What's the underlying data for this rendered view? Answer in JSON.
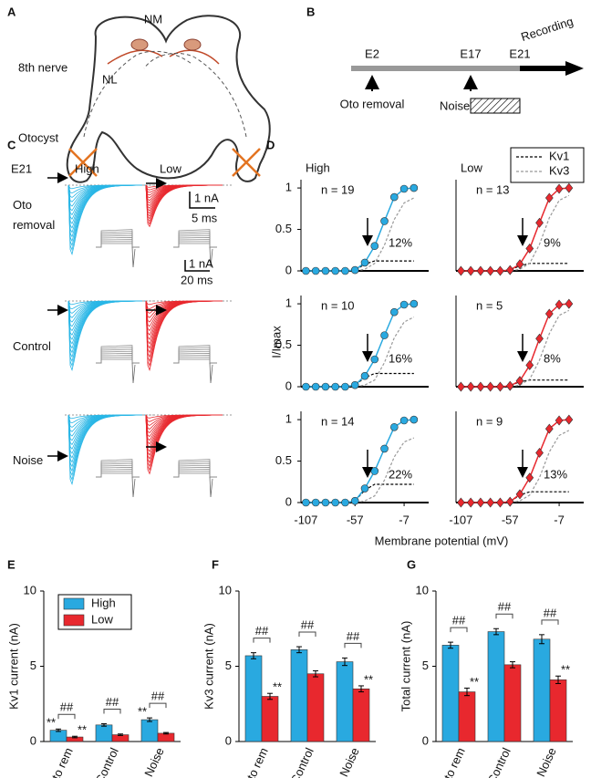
{
  "panel_labels": [
    "A",
    "B",
    "C",
    "D",
    "E",
    "F",
    "G"
  ],
  "diagram_a": {
    "labels": [
      "NM",
      "NL",
      "8th nerve",
      "Otocyst"
    ]
  },
  "timeline_b": {
    "stages": [
      "E2",
      "E17",
      "E21"
    ],
    "recording": "Recording",
    "events": [
      "Oto removal",
      "Noise"
    ]
  },
  "traces_c": {
    "age": "E21",
    "columns": [
      "High",
      "Low"
    ],
    "rows": [
      "Oto removal",
      "Control",
      "Noise"
    ],
    "scale_bars": [
      "1 nA",
      "5 ms",
      "1 nA",
      "20 ms"
    ]
  },
  "panel_d": {
    "columns": [
      "High",
      "Low"
    ],
    "ylabel": "I/Imax",
    "xlabel": "Membrane potential (mV)",
    "legend": [
      {
        "name": "Kv1",
        "color": "#000000"
      },
      {
        "name": "Kv3",
        "color": "#999999"
      }
    ]
  },
  "chart_data": [
    {
      "type": "line",
      "annotation": "n = 19",
      "percent": "12%",
      "x": [
        -107,
        -97,
        -87,
        -77,
        -67,
        -57,
        -47,
        -37,
        -27,
        -17,
        -7,
        3
      ],
      "xlim": [
        -112,
        18
      ],
      "ylim": [
        0,
        1.1
      ],
      "yticks": [
        0,
        0.5,
        1
      ],
      "series": [
        {
          "color": "#000000",
          "dash": "3 2",
          "values": [
            0,
            0,
            0,
            0,
            0,
            0.01,
            0.08,
            0.12,
            0.12,
            0.12,
            0.12,
            0.12
          ]
        },
        {
          "color": "#999999",
          "dash": "3 2",
          "values": [
            0,
            0,
            0,
            0,
            0,
            0,
            0.02,
            0.09,
            0.31,
            0.62,
            0.82,
            0.88
          ]
        },
        {
          "color": "#29a9e0",
          "marker": "circle",
          "values": [
            0,
            0,
            0,
            0,
            0,
            0.01,
            0.1,
            0.3,
            0.6,
            0.89,
            0.99,
            1
          ]
        }
      ]
    },
    {
      "type": "line",
      "annotation": "n = 13",
      "percent": "9%",
      "x": [
        -107,
        -97,
        -87,
        -77,
        -67,
        -57,
        -47,
        -37,
        -27,
        -17,
        -7,
        3
      ],
      "xlim": [
        -112,
        18
      ],
      "ylim": [
        0,
        1.1
      ],
      "series": [
        {
          "color": "#000000",
          "dash": "3 2",
          "values": [
            0,
            0,
            0,
            0,
            0,
            0.01,
            0.06,
            0.09,
            0.09,
            0.09,
            0.09,
            0.09
          ]
        },
        {
          "color": "#999999",
          "dash": "3 2",
          "values": [
            0,
            0,
            0,
            0,
            0,
            0,
            0.02,
            0.09,
            0.32,
            0.64,
            0.85,
            0.91
          ]
        },
        {
          "color": "#e8282e",
          "marker": "diamond",
          "values": [
            0,
            0,
            0,
            0,
            0,
            0.01,
            0.08,
            0.27,
            0.58,
            0.88,
            0.99,
            1
          ]
        }
      ]
    },
    {
      "type": "line",
      "annotation": "n = 10",
      "percent": "16%",
      "x": [
        -107,
        -97,
        -87,
        -77,
        -67,
        -57,
        -47,
        -37,
        -27,
        -17,
        -7,
        3
      ],
      "xlim": [
        -112,
        18
      ],
      "ylim": [
        0,
        1.1
      ],
      "yticks": [
        0,
        0.5,
        1
      ],
      "series": [
        {
          "color": "#000000",
          "dash": "3 2",
          "values": [
            0,
            0,
            0,
            0,
            0,
            0.02,
            0.11,
            0.16,
            0.16,
            0.16,
            0.16,
            0.16
          ]
        },
        {
          "color": "#999999",
          "dash": "3 2",
          "values": [
            0,
            0,
            0,
            0,
            0,
            0,
            0.02,
            0.08,
            0.29,
            0.59,
            0.78,
            0.84
          ]
        },
        {
          "color": "#29a9e0",
          "marker": "circle",
          "values": [
            0,
            0,
            0,
            0,
            0,
            0.02,
            0.13,
            0.33,
            0.62,
            0.9,
            0.99,
            1
          ]
        }
      ]
    },
    {
      "type": "line",
      "annotation": "n = 5",
      "percent": "8%",
      "x": [
        -107,
        -97,
        -87,
        -77,
        -67,
        -57,
        -47,
        -37,
        -27,
        -17,
        -7,
        3
      ],
      "xlim": [
        -112,
        18
      ],
      "ylim": [
        0,
        1.1
      ],
      "series": [
        {
          "color": "#000000",
          "dash": "3 2",
          "values": [
            0,
            0,
            0,
            0,
            0,
            0.01,
            0.06,
            0.08,
            0.08,
            0.08,
            0.08,
            0.08
          ]
        },
        {
          "color": "#999999",
          "dash": "3 2",
          "values": [
            0,
            0,
            0,
            0,
            0,
            0,
            0.02,
            0.09,
            0.32,
            0.64,
            0.86,
            0.92
          ]
        },
        {
          "color": "#e8282e",
          "marker": "diamond",
          "values": [
            0,
            0,
            0,
            0,
            0,
            0.01,
            0.07,
            0.26,
            0.58,
            0.88,
            0.99,
            1
          ]
        }
      ]
    },
    {
      "type": "line",
      "annotation": "n = 14",
      "percent": "22%",
      "x": [
        -107,
        -97,
        -87,
        -77,
        -67,
        -57,
        -47,
        -37,
        -27,
        -17,
        -7,
        3
      ],
      "xlim": [
        -112,
        18
      ],
      "ylim": [
        0,
        1.1
      ],
      "yticks": [
        0,
        0.5,
        1
      ],
      "xticks": [
        -107,
        -57,
        -7
      ],
      "series": [
        {
          "color": "#000000",
          "dash": "3 2",
          "values": [
            0,
            0,
            0,
            0,
            0,
            0.02,
            0.15,
            0.22,
            0.22,
            0.22,
            0.22,
            0.22
          ]
        },
        {
          "color": "#999999",
          "dash": "3 2",
          "values": [
            0,
            0,
            0,
            0,
            0,
            0,
            0.02,
            0.08,
            0.27,
            0.55,
            0.73,
            0.78
          ]
        },
        {
          "color": "#29a9e0",
          "marker": "circle",
          "values": [
            0,
            0,
            0,
            0,
            0,
            0.02,
            0.17,
            0.38,
            0.65,
            0.91,
            0.99,
            1
          ]
        }
      ]
    },
    {
      "type": "line",
      "annotation": "n = 9",
      "percent": "13%",
      "x": [
        -107,
        -97,
        -87,
        -77,
        -67,
        -57,
        -47,
        -37,
        -27,
        -17,
        -7,
        3
      ],
      "xlim": [
        -112,
        18
      ],
      "ylim": [
        0,
        1.1
      ],
      "xticks": [
        -107,
        -57,
        -7
      ],
      "series": [
        {
          "color": "#000000",
          "dash": "3 2",
          "values": [
            0,
            0,
            0,
            0,
            0,
            0.01,
            0.09,
            0.13,
            0.13,
            0.13,
            0.13,
            0.13
          ]
        },
        {
          "color": "#999999",
          "dash": "3 2",
          "values": [
            0,
            0,
            0,
            0,
            0,
            0,
            0.02,
            0.09,
            0.3,
            0.61,
            0.81,
            0.87
          ]
        },
        {
          "color": "#e8282e",
          "marker": "diamond",
          "values": [
            0,
            0,
            0,
            0,
            0,
            0.01,
            0.1,
            0.3,
            0.6,
            0.89,
            0.99,
            1
          ]
        }
      ]
    },
    {
      "type": "bar",
      "ylabel": "Kv1 current (nA)",
      "categories": [
        "Oto rem",
        "Control",
        "Noise"
      ],
      "ylim": [
        0,
        10
      ],
      "yticks": [
        0,
        5,
        10
      ],
      "legend": true,
      "brackets": [
        "##",
        "##",
        "##"
      ],
      "series": [
        {
          "name": "High",
          "color": "#29a9e0",
          "values": [
            0.75,
            1.1,
            1.45
          ],
          "errors": [
            0.08,
            0.08,
            0.12
          ],
          "stars": [
            "**",
            null,
            "**"
          ]
        },
        {
          "name": "Low",
          "color": "#e8282e",
          "values": [
            0.3,
            0.45,
            0.55
          ],
          "errors": [
            0.05,
            0.05,
            0.05
          ],
          "stars": [
            "**",
            null,
            null
          ]
        }
      ]
    },
    {
      "type": "bar",
      "ylabel": "Kv3 current (nA)",
      "categories": [
        "Oto rem",
        "Control",
        "Noise"
      ],
      "ylim": [
        0,
        10
      ],
      "yticks": [
        0,
        5,
        10
      ],
      "legend": false,
      "brackets": [
        "##",
        "##",
        "##"
      ],
      "series": [
        {
          "color": "#29a9e0",
          "values": [
            5.7,
            6.1,
            5.3
          ],
          "errors": [
            0.2,
            0.2,
            0.25
          ],
          "stars": [
            null,
            null,
            null
          ]
        },
        {
          "color": "#e8282e",
          "values": [
            3.0,
            4.5,
            3.5
          ],
          "errors": [
            0.2,
            0.2,
            0.2
          ],
          "stars": [
            "**",
            null,
            "**"
          ]
        }
      ]
    },
    {
      "type": "bar",
      "ylabel": "Total current (nA)",
      "categories": [
        "Oto rem",
        "Control",
        "Noise"
      ],
      "ylim": [
        0,
        10
      ],
      "yticks": [
        0,
        5,
        10
      ],
      "legend": false,
      "brackets": [
        "##",
        "##",
        "##"
      ],
      "series": [
        {
          "color": "#29a9e0",
          "values": [
            6.4,
            7.3,
            6.8
          ],
          "errors": [
            0.2,
            0.2,
            0.3
          ],
          "stars": [
            null,
            null,
            null
          ]
        },
        {
          "color": "#e8282e",
          "values": [
            3.3,
            5.1,
            4.1
          ],
          "errors": [
            0.25,
            0.2,
            0.25
          ],
          "stars": [
            "**",
            null,
            "**"
          ]
        }
      ]
    }
  ]
}
